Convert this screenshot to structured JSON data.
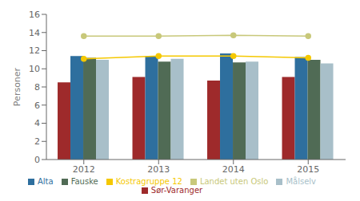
{
  "chart_data": {
    "type": "bar",
    "categories": [
      "2012",
      "2013",
      "2014",
      "2015"
    ],
    "series": [
      {
        "name": "Sør-Varanger",
        "type": "bar",
        "color": "#9e2a2b",
        "values": [
          8.5,
          9.1,
          8.7,
          9.1
        ]
      },
      {
        "name": "Alta",
        "type": "bar",
        "color": "#2e6f9e",
        "values": [
          11.4,
          11.4,
          11.7,
          11.3
        ]
      },
      {
        "name": "Fauske",
        "type": "bar",
        "color": "#506b55",
        "values": [
          11.2,
          10.8,
          10.7,
          11.0
        ]
      },
      {
        "name": "Målselv",
        "type": "bar",
        "color": "#a8bfc9",
        "values": [
          11.0,
          11.1,
          10.8,
          10.6
        ]
      },
      {
        "name": "Landet uten Oslo",
        "type": "line",
        "color": "#c8c87a",
        "marker": "circle",
        "values": [
          13.6,
          13.6,
          13.7,
          13.6
        ]
      },
      {
        "name": "Kostragruppe 12",
        "type": "line",
        "color": "#f5c800",
        "marker": "circle",
        "values": [
          11.1,
          11.4,
          11.4,
          11.2
        ]
      }
    ],
    "y_label": "Personer",
    "ylim": [
      0,
      16
    ],
    "yticks": [
      0,
      2,
      4,
      6,
      8,
      10,
      12,
      14,
      16
    ],
    "grid": false,
    "legend": "bottom"
  }
}
